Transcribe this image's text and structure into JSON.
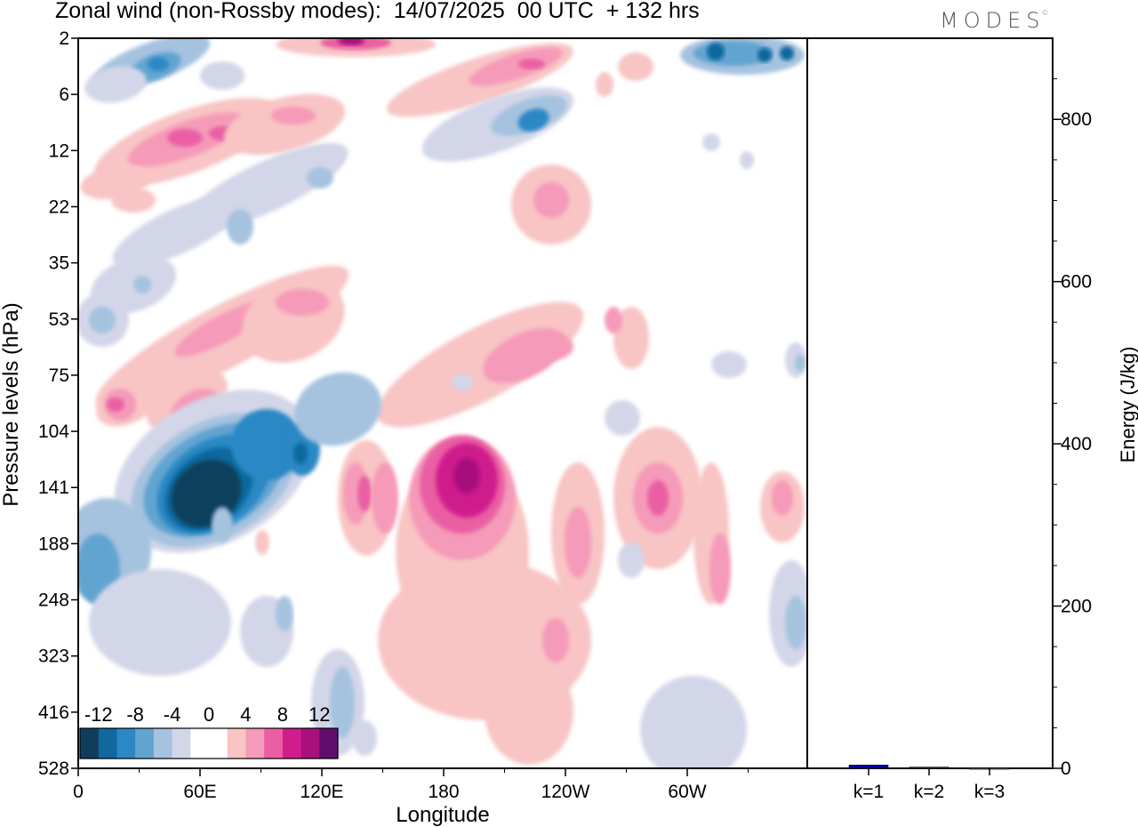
{
  "header": {
    "title": "Zonal wind (non-Rossby modes):  14/07/2025  00 UTC  + 132 hrs",
    "brand": "MODES",
    "brand_mark": "©"
  },
  "chart_data": [
    {
      "type": "heatmap",
      "title": "Zonal wind (non-Rossby modes):  14/07/2025  00 UTC  + 132 hrs",
      "xlabel": "Longitude",
      "ylabel": "Pressure levels (hPa)",
      "x_ticks": [
        "0",
        "60E",
        "120E",
        "180",
        "120W",
        "60W"
      ],
      "y_ticks": [
        "2",
        "6",
        "12",
        "22",
        "35",
        "53",
        "75",
        "104",
        "141",
        "188",
        "248",
        "323",
        "416",
        "528"
      ],
      "y_scale": "log, reversed",
      "colorbar": {
        "labels": [
          "-12",
          "-8",
          "-4",
          "0",
          "4",
          "8",
          "12"
        ],
        "colors": [
          "#0d3f5c",
          "#10689e",
          "#2b88c4",
          "#62a4d0",
          "#a5c2df",
          "#d3d6e8",
          "#ffffff",
          "#ffffff",
          "#f8c4c4",
          "#f59ab8",
          "#ea5fa3",
          "#cf1e8c",
          "#a8107e",
          "#600d6e"
        ]
      },
      "features": [
        {
          "name": "negative core",
          "longitude": "60E-75E",
          "pressure": "104-188",
          "value": -14
        },
        {
          "name": "positive core",
          "longitude": "180-170W",
          "pressure": "104-188",
          "value": 12
        },
        {
          "name": "positive band",
          "longitude": "60E-120E",
          "pressure": "6-12",
          "value": 8
        },
        {
          "name": "negative band",
          "longitude": "0-60E",
          "pressure": "2-6",
          "value": -8
        }
      ]
    },
    {
      "type": "bar",
      "ylabel": "Energy (J/kg)",
      "y_ticks": [
        "0",
        "200",
        "400",
        "600",
        "800"
      ],
      "ylim": [
        0,
        900
      ],
      "categories": [
        "k=1",
        "k=2",
        "k=3"
      ],
      "values": [
        4,
        1.5,
        0.5
      ],
      "colors": [
        "#0000aa",
        "#333333",
        "#555555"
      ]
    }
  ]
}
